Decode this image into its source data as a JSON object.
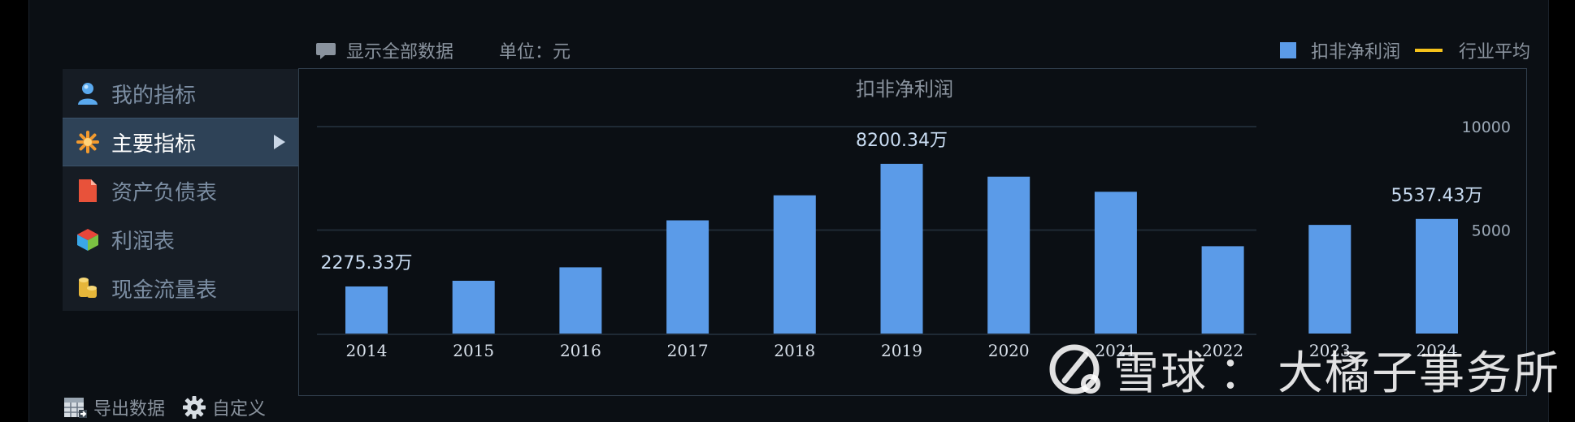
{
  "toolbar": {
    "show_all_label": "显示全部数据",
    "unit_label": "单位：元",
    "legend": {
      "bar_label": "扣非净利润",
      "line_label": "行业平均"
    }
  },
  "colors": {
    "bar": "#5b9be8",
    "industry_line": "#f5c21b",
    "active_item_bg": "#2e4257",
    "panel_bg": "#0b0f14"
  },
  "sidebar": {
    "items": [
      {
        "label": "我的指标",
        "icon": "user-icon",
        "active": false
      },
      {
        "label": "主要指标",
        "icon": "asterisk-icon",
        "active": true
      },
      {
        "label": "资产负债表",
        "icon": "document-icon",
        "active": false
      },
      {
        "label": "利润表",
        "icon": "cube-icon",
        "active": false
      },
      {
        "label": "现金流量表",
        "icon": "coins-icon",
        "active": false
      }
    ]
  },
  "chart_data": {
    "type": "bar",
    "title": "扣非净利润",
    "categories": [
      "2014",
      "2015",
      "2016",
      "2017",
      "2018",
      "2019",
      "2020",
      "2021",
      "2022",
      "2023",
      "2024"
    ],
    "series": [
      {
        "name": "扣非净利润",
        "values": [
          2275.33,
          2550,
          3200,
          5470,
          6680,
          8200.34,
          7580,
          6850,
          4220,
          5250,
          5537.43
        ]
      }
    ],
    "value_unit": "万",
    "data_labels": [
      {
        "category": "2014",
        "text": "2275.33万"
      },
      {
        "category": "2019",
        "text": "8200.34万"
      },
      {
        "category": "2024",
        "text": "5537.43万"
      }
    ],
    "y_ticks": [
      5000,
      10000
    ],
    "ylim": [
      0,
      10000
    ],
    "axis_position": "right",
    "grid": true,
    "legend_position": "top-right"
  },
  "bottom_tools": {
    "export_label": "导出数据",
    "custom_label": "自定义"
  },
  "watermark": {
    "brand": "雪球",
    "sep": "：",
    "author": "大橘子事务所"
  }
}
